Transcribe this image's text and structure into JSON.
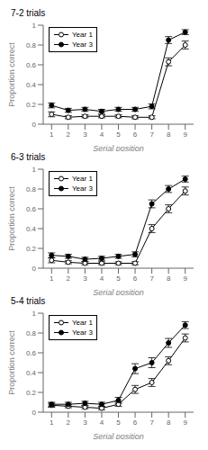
{
  "chart_data": [
    {
      "type": "line",
      "title": "7-2 trials",
      "xlabel": "Serial position",
      "ylabel": "Proportion correct",
      "x": [
        1,
        2,
        3,
        4,
        5,
        6,
        7,
        8,
        9
      ],
      "xlim": [
        0.5,
        9.5
      ],
      "xticks": [
        1,
        2,
        3,
        4,
        5,
        6,
        7,
        8,
        9
      ],
      "ylim": [
        0,
        1.0
      ],
      "yticks": [
        0,
        0.2,
        0.4,
        0.6,
        0.8,
        1.0
      ],
      "grid": false,
      "legend": "upper left",
      "series": [
        {
          "name": "Year 1",
          "color": "#000000",
          "marker": "open_circle",
          "values": [
            0.1,
            0.07,
            0.08,
            0.08,
            0.08,
            0.07,
            0.07,
            0.63,
            0.8
          ],
          "errors": [
            0.025,
            0.015,
            0.015,
            0.015,
            0.015,
            0.015,
            0.015,
            0.04,
            0.04
          ]
        },
        {
          "name": "Year 3",
          "color": "#000000",
          "marker": "circle",
          "values": [
            0.19,
            0.14,
            0.15,
            0.13,
            0.15,
            0.15,
            0.18,
            0.85,
            0.93
          ],
          "errors": [
            0.025,
            0.02,
            0.02,
            0.02,
            0.02,
            0.02,
            0.025,
            0.035,
            0.025
          ]
        }
      ]
    },
    {
      "type": "line",
      "title": "6-3 trials",
      "xlabel": "Serial position",
      "ylabel": "Proportion correct",
      "x": [
        1,
        2,
        3,
        4,
        5,
        6,
        7,
        8,
        9
      ],
      "xlim": [
        0.5,
        9.5
      ],
      "xticks": [
        1,
        2,
        3,
        4,
        5,
        6,
        7,
        8,
        9
      ],
      "ylim": [
        0,
        1.0
      ],
      "yticks": [
        0,
        0.2,
        0.4,
        0.6,
        0.8,
        1.0
      ],
      "grid": false,
      "legend": "upper left",
      "series": [
        {
          "name": "Year 1",
          "color": "#000000",
          "marker": "open_circle",
          "values": [
            0.08,
            0.06,
            0.05,
            0.05,
            0.05,
            0.05,
            0.4,
            0.6,
            0.78
          ],
          "errors": [
            0.025,
            0.015,
            0.015,
            0.015,
            0.015,
            0.015,
            0.04,
            0.04,
            0.04
          ]
        },
        {
          "name": "Year 3",
          "color": "#000000",
          "marker": "circle",
          "values": [
            0.13,
            0.12,
            0.09,
            0.1,
            0.12,
            0.14,
            0.65,
            0.8,
            0.9
          ],
          "errors": [
            0.025,
            0.02,
            0.02,
            0.02,
            0.02,
            0.025,
            0.04,
            0.035,
            0.03
          ]
        }
      ]
    },
    {
      "type": "line",
      "title": "5-4 trials",
      "xlabel": "Serial position",
      "ylabel": "Proportion correct",
      "x": [
        1,
        2,
        3,
        4,
        5,
        6,
        7,
        8,
        9
      ],
      "xlim": [
        0.5,
        9.5
      ],
      "xticks": [
        1,
        2,
        3,
        4,
        5,
        6,
        7,
        8,
        9
      ],
      "ylim": [
        0,
        1.0
      ],
      "yticks": [
        0,
        0.2,
        0.4,
        0.6,
        0.8,
        1.0
      ],
      "grid": false,
      "legend": "upper left",
      "series": [
        {
          "name": "Year 1",
          "color": "#000000",
          "marker": "open_circle",
          "values": [
            0.07,
            0.06,
            0.05,
            0.04,
            0.08,
            0.23,
            0.3,
            0.52,
            0.75
          ],
          "errors": [
            0.02,
            0.015,
            0.015,
            0.015,
            0.02,
            0.04,
            0.04,
            0.04,
            0.04
          ]
        },
        {
          "name": "Year 3",
          "color": "#000000",
          "marker": "circle",
          "values": [
            0.08,
            0.08,
            0.09,
            0.08,
            0.12,
            0.44,
            0.5,
            0.7,
            0.88
          ],
          "errors": [
            0.02,
            0.02,
            0.02,
            0.02,
            0.03,
            0.05,
            0.05,
            0.045,
            0.035
          ]
        }
      ]
    }
  ]
}
